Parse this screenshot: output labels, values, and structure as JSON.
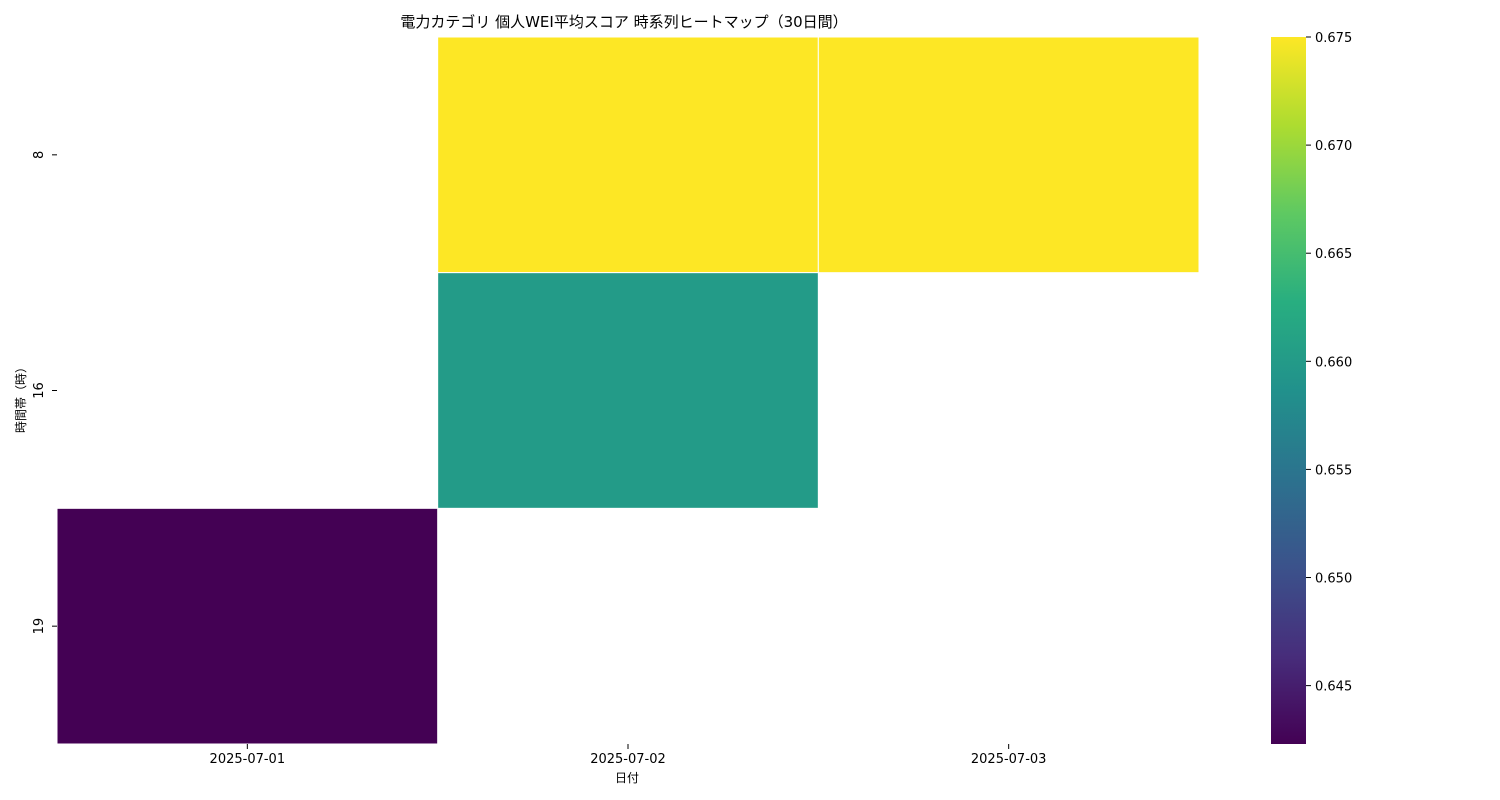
{
  "chart_data": {
    "type": "heatmap",
    "title": "電力カテゴリ 個人WEI平均スコア 時系列ヒートマップ（30日間）",
    "xlabel": "日付",
    "ylabel": "時間帯（時）",
    "x": [
      "2025-07-01",
      "2025-07-02",
      "2025-07-03"
    ],
    "y": [
      "8",
      "16",
      "19"
    ],
    "values": [
      [
        null,
        0.675,
        0.675
      ],
      [
        null,
        0.66,
        null
      ],
      [
        0.6423,
        null,
        null
      ]
    ],
    "colormap": "viridis",
    "colorbar": {
      "range": [
        0.6423,
        0.675
      ],
      "ticks": [
        "0.645",
        "0.650",
        "0.655",
        "0.660",
        "0.665",
        "0.670",
        "0.675"
      ]
    },
    "grid": false,
    "missing_color": "#ffffff"
  }
}
